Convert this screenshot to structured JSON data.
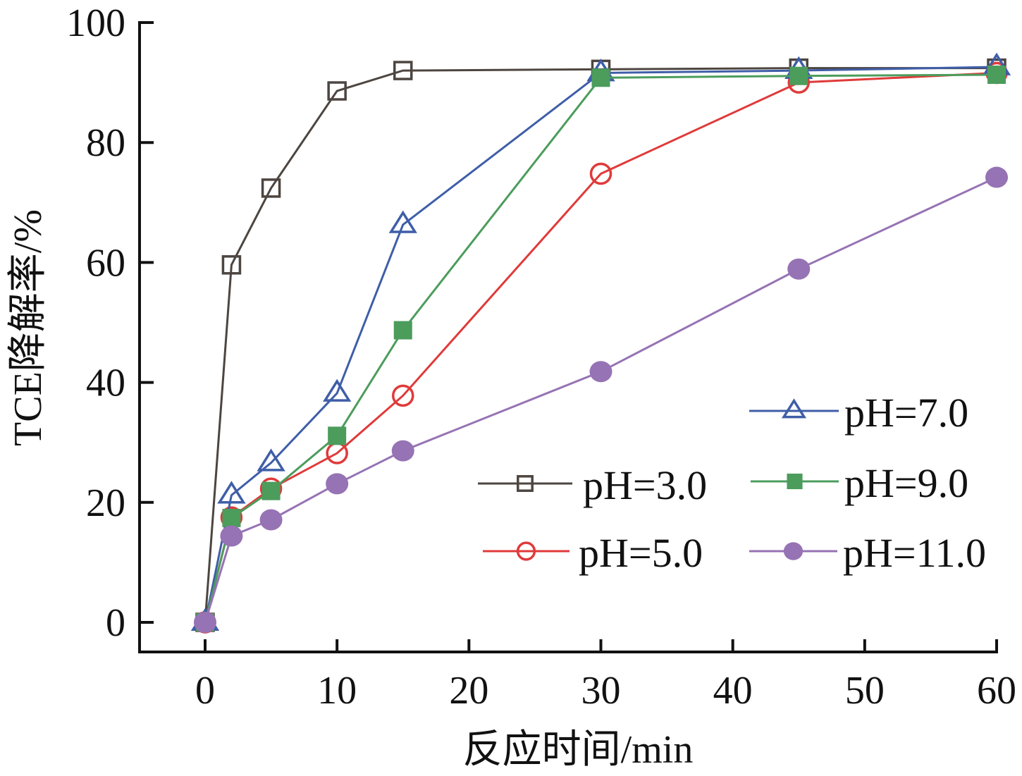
{
  "chart_data": {
    "type": "line",
    "title": "",
    "xlabel": "反应时间/min",
    "ylabel": "TCE降解率/%",
    "xlim": [
      -5,
      60
    ],
    "ylim": [
      -5,
      100
    ],
    "xticks": [
      0,
      10,
      20,
      30,
      40,
      50,
      60
    ],
    "yticks": [
      0,
      20,
      40,
      60,
      80,
      100
    ],
    "xtick_labels": [
      "0",
      "10",
      "20",
      "30",
      "40",
      "50",
      "60"
    ],
    "ytick_labels": [
      "0",
      "20",
      "40",
      "60",
      "80",
      "100"
    ],
    "grid": false,
    "legend_position": "bottom-right",
    "x": [
      0,
      2,
      5,
      10,
      15,
      30,
      45,
      60
    ],
    "series": [
      {
        "name": "pH=3.0",
        "color": "#4d4540",
        "marker": "open-square",
        "values": [
          0,
          59.6,
          72.4,
          88.6,
          92.0,
          92.2,
          92.4,
          92.4
        ]
      },
      {
        "name": "pH=5.0",
        "color": "#e03a3a",
        "marker": "open-circle",
        "values": [
          0,
          17.5,
          22.3,
          28.2,
          37.8,
          74.8,
          90.0,
          91.6
        ]
      },
      {
        "name": "pH=7.0",
        "color": "#3f5ea8",
        "marker": "open-triangle",
        "values": [
          0,
          21.2,
          26.6,
          38.2,
          66.3,
          91.6,
          92.0,
          92.6
        ]
      },
      {
        "name": "pH=9.0",
        "color": "#4c9c5c",
        "marker": "filled-square",
        "values": [
          0,
          17.4,
          21.9,
          31.1,
          48.7,
          90.8,
          91.1,
          91.3
        ]
      },
      {
        "name": "pH=11.0",
        "color": "#9673b4",
        "marker": "filled-circle",
        "values": [
          0,
          14.4,
          17.1,
          23.1,
          28.6,
          41.8,
          58.9,
          74.2
        ]
      }
    ],
    "legend": {
      "entries": [
        "pH=7.0",
        "pH=3.0",
        "pH=9.0",
        "pH=5.0",
        "pH=11.0"
      ]
    }
  }
}
